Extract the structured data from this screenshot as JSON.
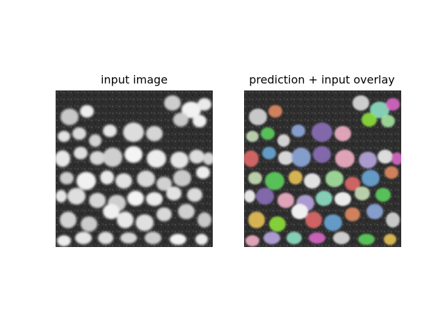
{
  "figure": {
    "left_title": "input image",
    "right_title": "prediction + input overlay"
  },
  "colors": {
    "background": "#ffffff",
    "cell_gray": "#dcdcdc",
    "tissue_dark": "#2b2b2b",
    "overlay_palette": [
      "#6aa6d6",
      "#8a6fb8",
      "#8ee0c4",
      "#5ccf5c",
      "#a5e3a0",
      "#e08a60",
      "#f2b0c8",
      "#d866c8",
      "#e8c258",
      "#e06868",
      "#8fa8dc",
      "#b7a6e0",
      "#c8e0b8",
      "#8ee03c"
    ]
  }
}
